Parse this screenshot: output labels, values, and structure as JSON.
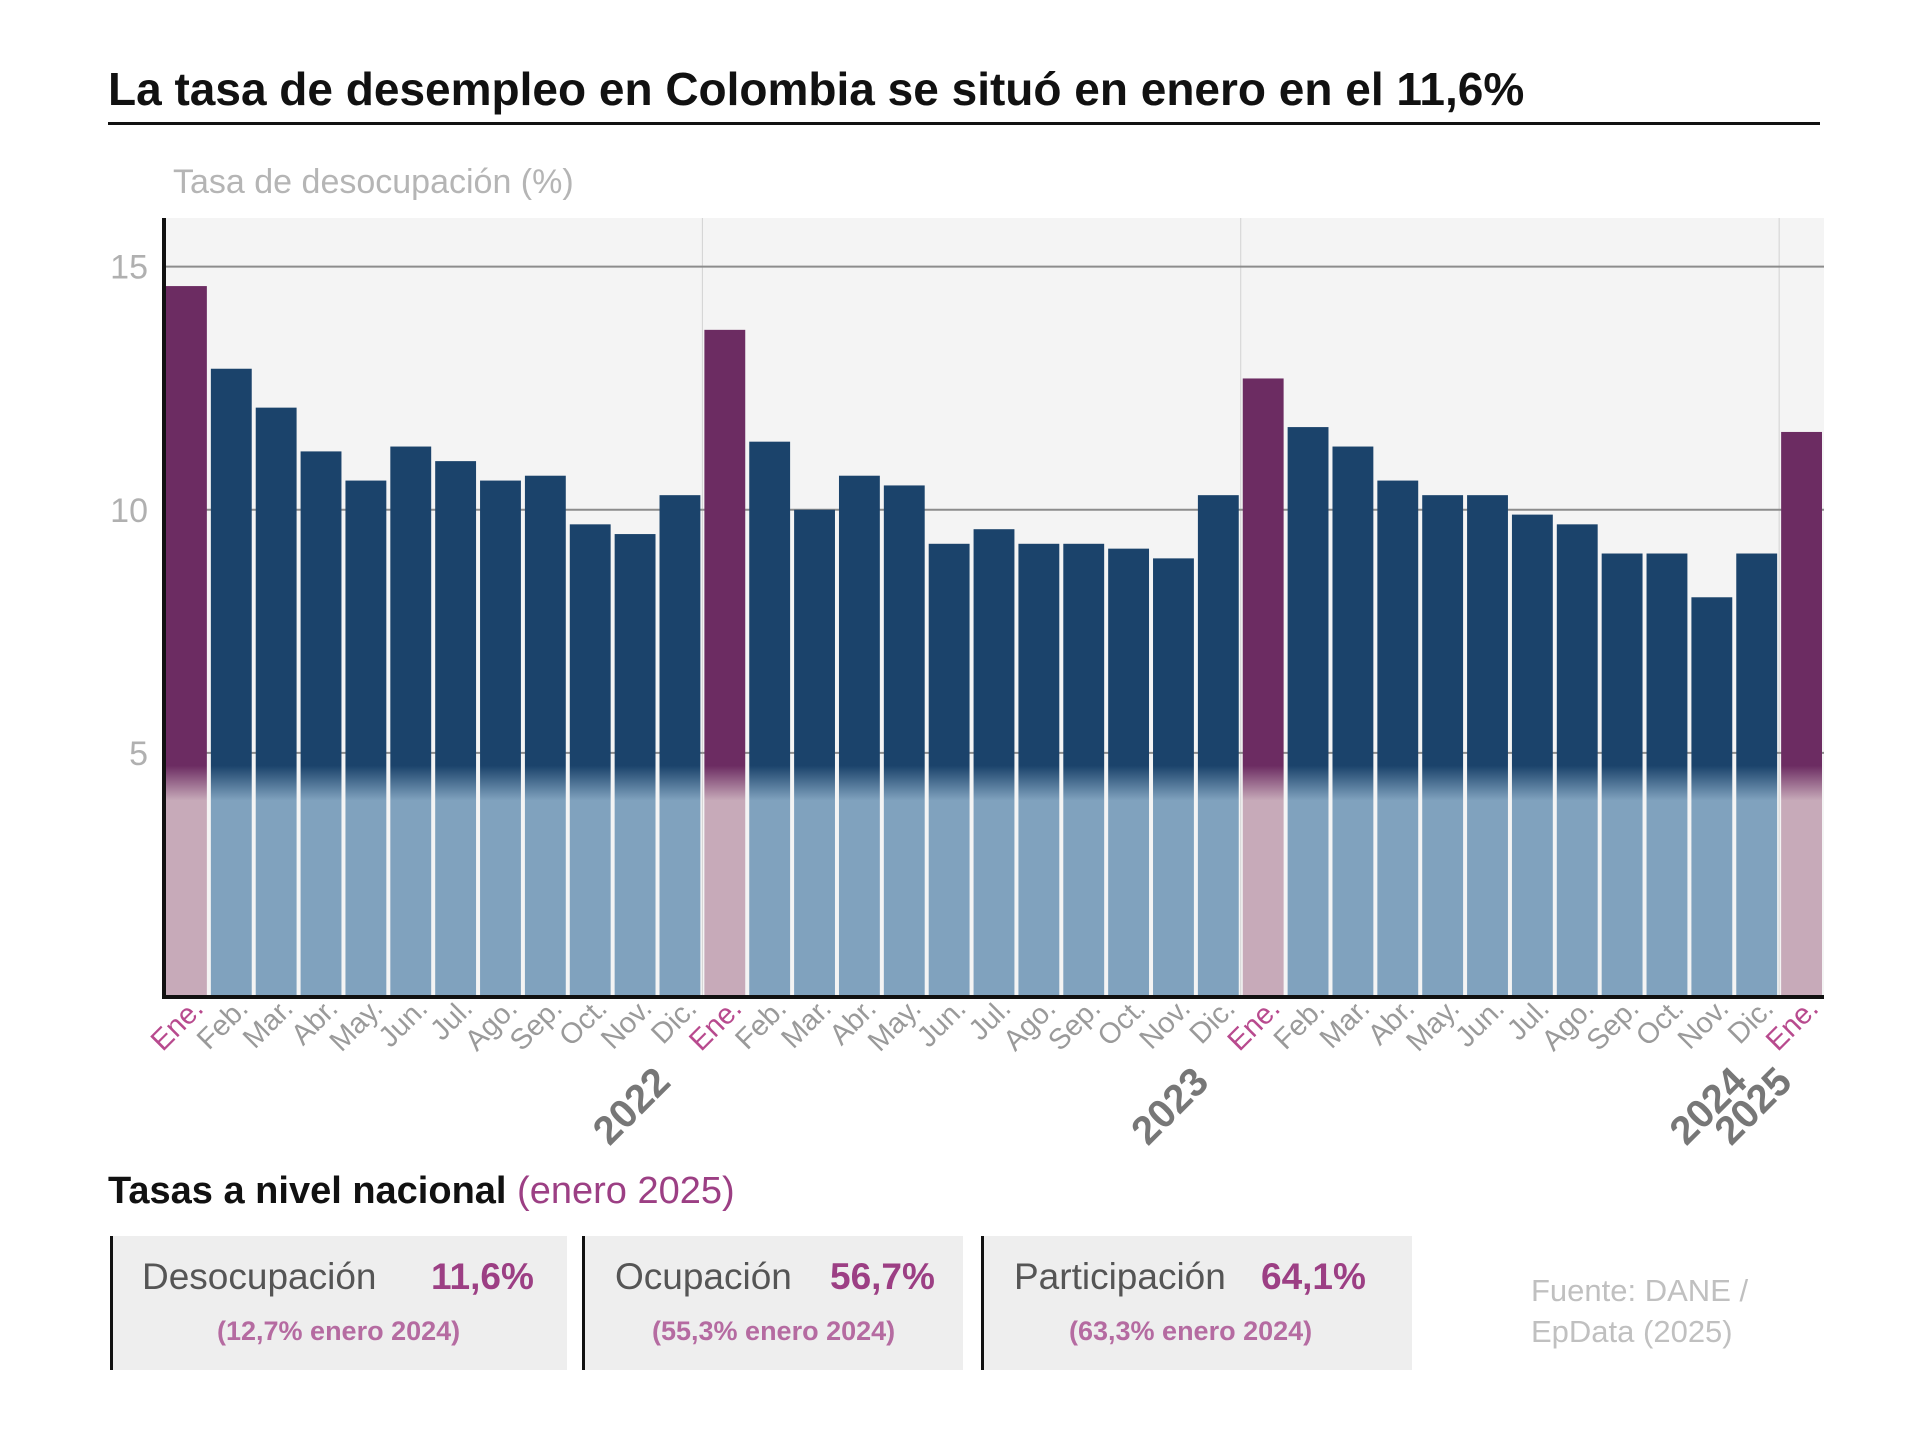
{
  "title": "La tasa de desempleo en Colombia se situó en enero en el 11,6%",
  "chart_data": {
    "type": "bar",
    "ylabel": "Tasa de desocupación (%)",
    "ylim": [
      0,
      16
    ],
    "yticks": [
      5,
      10,
      15
    ],
    "grid": true,
    "categories": [
      "Ene.",
      "Feb.",
      "Mar.",
      "Abr.",
      "May.",
      "Jun.",
      "Jul.",
      "Ago.",
      "Sep.",
      "Oct.",
      "Nov.",
      "Dic.",
      "Ene.",
      "Feb.",
      "Mar.",
      "Abr.",
      "May.",
      "Jun.",
      "Jul.",
      "Ago.",
      "Sep.",
      "Oct.",
      "Nov.",
      "Dic.",
      "Ene.",
      "Feb.",
      "Mar.",
      "Abr.",
      "May.",
      "Jun.",
      "Jul.",
      "Ago.",
      "Sep.",
      "Oct.",
      "Nov.",
      "Dic.",
      "Ene."
    ],
    "values": [
      14.6,
      12.9,
      12.1,
      11.2,
      10.6,
      11.3,
      11.0,
      10.6,
      10.7,
      9.7,
      9.5,
      10.3,
      13.7,
      11.4,
      10.0,
      10.7,
      10.5,
      9.3,
      9.6,
      9.3,
      9.3,
      9.2,
      9.0,
      10.3,
      12.7,
      11.7,
      11.3,
      10.6,
      10.3,
      10.3,
      9.9,
      9.7,
      9.1,
      9.1,
      8.2,
      9.1,
      11.6
    ],
    "years": [
      {
        "label": "2022",
        "start_index": 0
      },
      {
        "label": "2023",
        "start_index": 12
      },
      {
        "label": "2024",
        "start_index": 24
      },
      {
        "label": "2025",
        "start_index": 36
      }
    ],
    "colors": {
      "highlight": "#6c2c62",
      "normal": "#1b436b",
      "highlight_label": "#b84a8e",
      "label": "#9a9a9a"
    }
  },
  "summary": {
    "title": "Tasas a nivel nacional",
    "subtitle": "(enero 2025)",
    "cards": [
      {
        "label": "Desocupación",
        "value": "11,6%",
        "previous": "(12,7% enero 2024)"
      },
      {
        "label": "Ocupación",
        "value": "56,7%",
        "previous": "(55,3% enero 2024)"
      },
      {
        "label": "Participación",
        "value": "64,1%",
        "previous": "(63,3% enero 2024)"
      }
    ]
  },
  "source": "Fuente: DANE / EpData (2025)"
}
